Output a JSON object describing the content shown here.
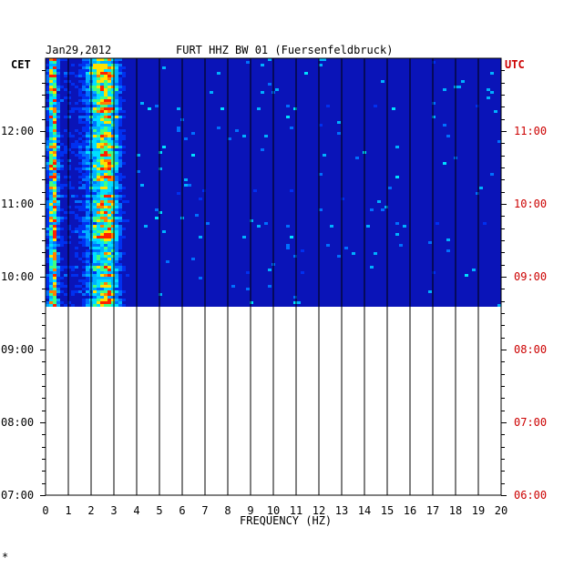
{
  "header": {
    "date": "Jan29,2012",
    "station": "FURT HHZ BW 01 (Fuersenfeldbruck)"
  },
  "colors": {
    "background_blue": "#0a14b8",
    "deep_blue": "#00007a",
    "utc_red": "#cc0000",
    "axis_black": "#000000",
    "hot": "#ff2000",
    "warm": "#ffd000",
    "mid": "#00e0ff"
  },
  "chart_data": {
    "type": "heatmap",
    "title": "FURT HHZ BW 01 (Fuersenfeldbruck)",
    "xlabel": "FREQUENCY (HZ)",
    "ylabel_left": "CET",
    "ylabel_right": "UTC",
    "xlim": [
      0,
      20
    ],
    "x_ticks": [
      "0",
      "1",
      "2",
      "3",
      "4",
      "5",
      "6",
      "7",
      "8",
      "9",
      "10",
      "11",
      "12",
      "13",
      "14",
      "15",
      "16",
      "17",
      "18",
      "19",
      "20"
    ],
    "y_ticks_cet": [
      "12:00",
      "11:00",
      "10:00",
      "09:00",
      "08:00",
      "07:00"
    ],
    "y_ticks_utc": [
      "11:00",
      "10:00",
      "09:00",
      "08:00",
      "07:00",
      "06:00"
    ],
    "y_tick_cet_hours": [
      12,
      11,
      10,
      9,
      8,
      7
    ],
    "time_range_cet": [
      "07:00",
      "12:50"
    ],
    "data_range_cet": [
      "09:35",
      "12:50"
    ],
    "dominant_bands_hz": [
      {
        "freq": 0.35,
        "strength": "very high"
      },
      {
        "freq": 2.8,
        "strength": "high"
      },
      {
        "freq": 2.2,
        "strength": "medium"
      }
    ],
    "grid": true,
    "vertical_gridlines_hz": [
      1,
      2,
      3,
      4,
      5,
      6,
      7,
      8,
      9,
      10,
      11,
      12,
      13,
      14,
      15,
      16,
      17,
      18,
      19,
      20
    ]
  },
  "footer": {
    "corner_mark": "*"
  }
}
